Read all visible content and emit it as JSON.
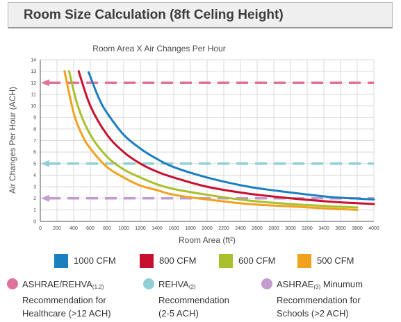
{
  "header": {
    "title": "Room Size Calculation (8ft Celing Height)"
  },
  "chart_data": {
    "type": "line",
    "title": "Room Area X Air Changes Per Hour",
    "xlabel": "Room Area (ft²)",
    "ylabel": "Air Changes Per Hour (ACH)",
    "xlim": [
      0,
      4000
    ],
    "ylim": [
      0,
      14
    ],
    "xticks": [
      0,
      200,
      400,
      600,
      800,
      1000,
      1200,
      1400,
      1600,
      1800,
      2000,
      2200,
      2400,
      2600,
      2800,
      3000,
      3200,
      3400,
      3600,
      3800,
      4000
    ],
    "xtick_labels": [
      "0",
      "200",
      "400",
      "600",
      "800",
      "1000",
      "1200",
      "1400",
      "1600",
      "1800",
      "2000",
      "2200",
      "2400",
      "2600",
      "2800",
      "3000",
      "3200",
      "3400",
      "3600",
      "3800",
      "4000"
    ],
    "yticks": [
      0,
      1,
      2,
      3,
      4,
      5,
      6,
      7,
      8,
      9,
      10,
      11,
      12,
      13,
      14
    ],
    "grid": true,
    "series": [
      {
        "name": "1000 CFM",
        "color": "#1a7fc1",
        "cfm": 1000,
        "x": [
          580,
          700,
          800,
          1000,
          1200,
          1400,
          1600,
          2000,
          2500,
          3000,
          3500,
          4000
        ],
        "y": [
          12.9,
          10.7,
          9.4,
          7.5,
          6.3,
          5.4,
          4.7,
          3.8,
          3.0,
          2.5,
          2.1,
          1.9
        ]
      },
      {
        "name": "800 CFM",
        "color": "#c8102e",
        "cfm": 800,
        "x": [
          460,
          600,
          800,
          1000,
          1200,
          1400,
          1600,
          2000,
          2500,
          3000,
          3500,
          4000
        ],
        "y": [
          13.0,
          10.0,
          7.5,
          6.0,
          5.0,
          4.3,
          3.8,
          3.0,
          2.4,
          2.0,
          1.7,
          1.5
        ]
      },
      {
        "name": "600 CFM",
        "color": "#a9bf2b",
        "cfm": 600,
        "x": [
          345,
          450,
          600,
          800,
          1000,
          1200,
          1400,
          1600,
          2000,
          2500,
          3000,
          3500,
          3800
        ],
        "y": [
          13.0,
          10.0,
          7.5,
          5.6,
          4.5,
          3.8,
          3.2,
          2.8,
          2.3,
          1.8,
          1.5,
          1.3,
          1.2
        ]
      },
      {
        "name": "500 CFM",
        "color": "#f0a21f",
        "cfm": 500,
        "x": [
          290,
          400,
          500,
          600,
          800,
          1000,
          1200,
          1400,
          1600,
          2000,
          2500,
          3000,
          3500,
          3800
        ],
        "y": [
          13.0,
          9.4,
          7.5,
          6.3,
          4.7,
          3.8,
          3.1,
          2.7,
          2.3,
          1.9,
          1.5,
          1.3,
          1.1,
          1.0
        ]
      }
    ],
    "reference_lines": [
      {
        "y": 12,
        "color": "#e0739a"
      },
      {
        "y": 5,
        "color": "#8fd0d6"
      },
      {
        "y": 2,
        "color": "#c39ccf"
      }
    ]
  },
  "legend": [
    {
      "label": "1000 CFM",
      "color": "#1a7fc1"
    },
    {
      "label": "800 CFM",
      "color": "#c8102e"
    },
    {
      "label": "600 CFM",
      "color": "#a9bf2b"
    },
    {
      "label": "500 CFM",
      "color": "#f0a21f"
    }
  ],
  "notes": [
    {
      "color": "#e0739a",
      "line1_a": "ASHRAE/REHVA",
      "line1_sub": "(1,2)",
      "line1_b": "",
      "line2": "Recommendation for",
      "line3": "Healthcare (>12 ACH)"
    },
    {
      "color": "#8fd0d6",
      "line1_a": "REHVA",
      "line1_sub": "(2)",
      "line1_b": "",
      "line2": "Recommendation",
      "line3": "(2-5 ACH)"
    },
    {
      "color": "#c39ccf",
      "line1_a": "ASHRAE",
      "line1_sub": "(3)",
      "line1_b": " Minumum",
      "line2": "Recommendation for",
      "line3": "Schools (>2 ACH)"
    }
  ]
}
